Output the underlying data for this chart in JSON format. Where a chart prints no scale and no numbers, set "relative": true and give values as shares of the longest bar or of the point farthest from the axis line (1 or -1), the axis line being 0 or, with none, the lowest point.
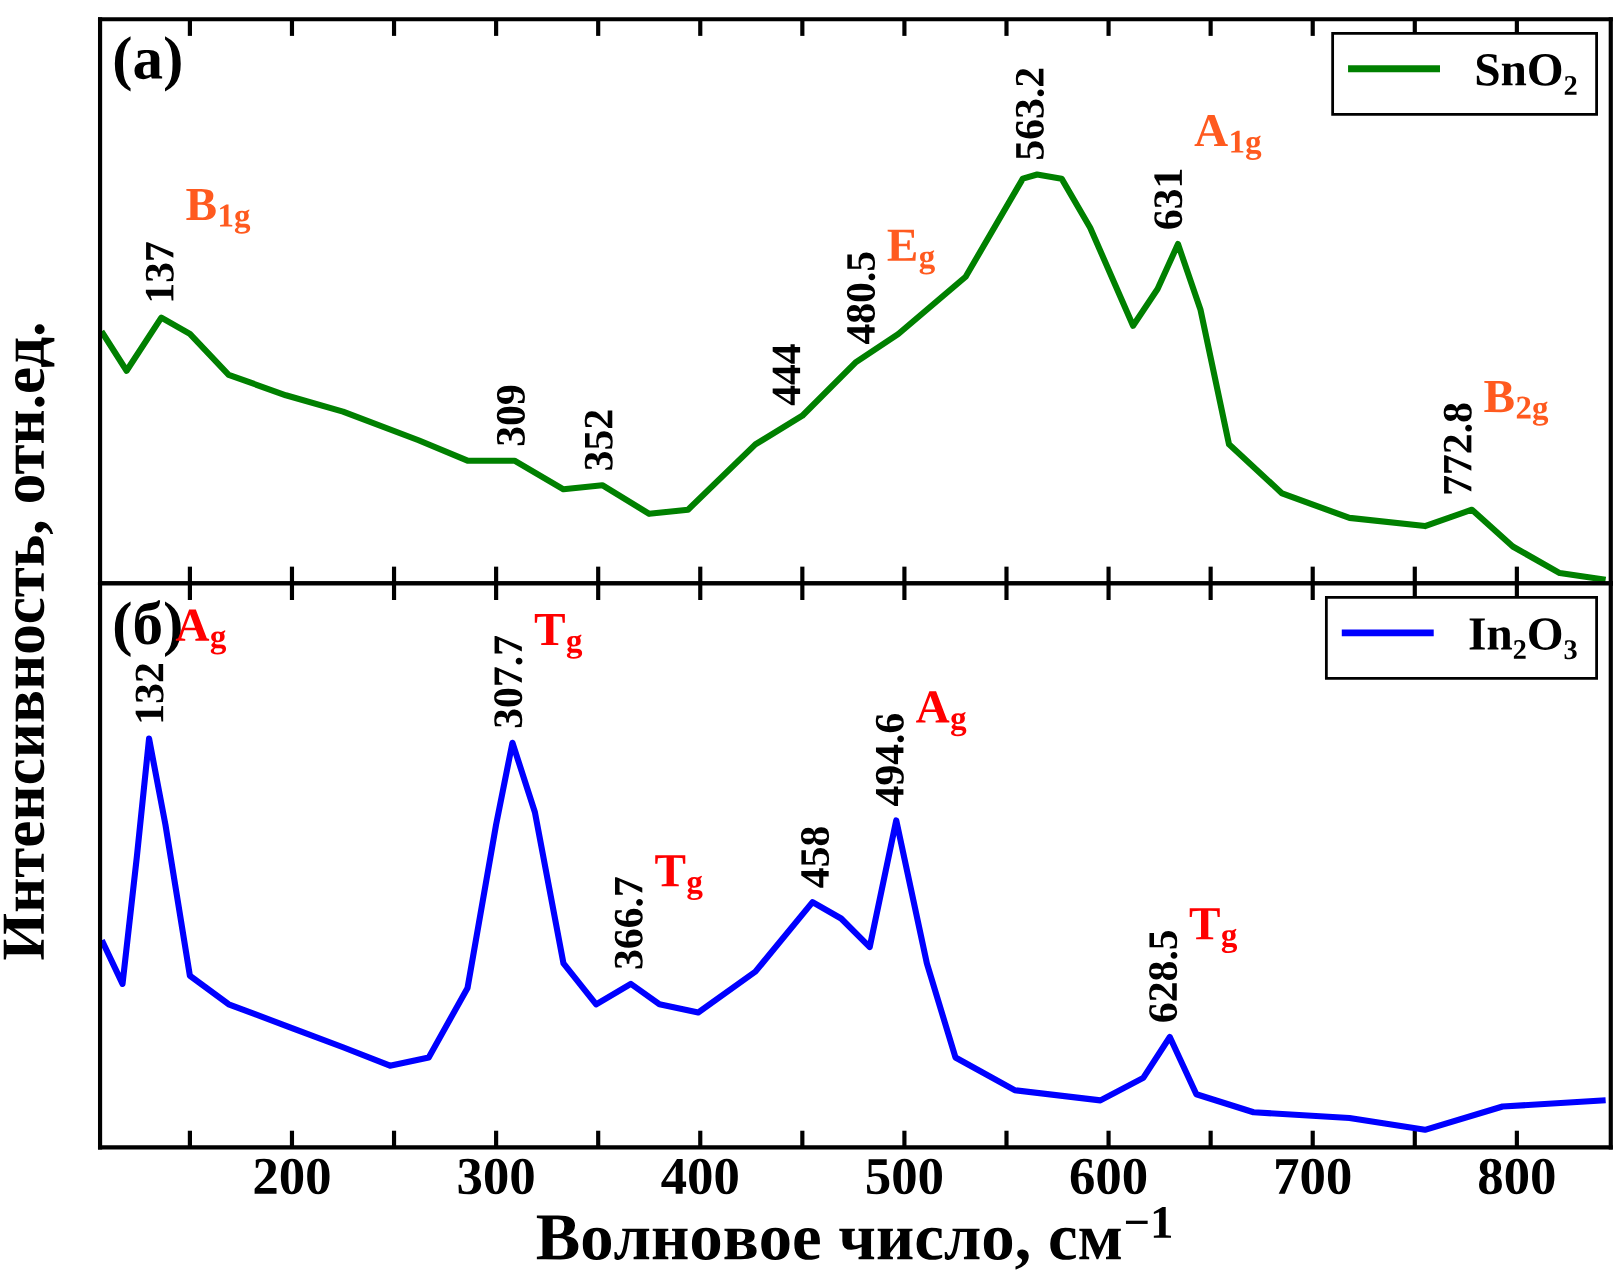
{
  "chart_data": [
    {
      "type": "line",
      "title": "(a)",
      "ylabel": "Интенсивность, отн.ед.",
      "relative": true,
      "legend": "top right",
      "grid": false,
      "tick_labels": false,
      "xlim": [
        106,
        846
      ],
      "xticks": [
        {
          "value": 150,
          "label": null
        },
        200,
        {
          "value": 250,
          "label": null
        },
        300,
        {
          "value": 350,
          "label": null
        },
        400,
        {
          "value": 450,
          "label": null
        },
        500,
        {
          "value": 550,
          "label": null
        },
        600,
        {
          "value": 650,
          "label": null
        },
        700,
        {
          "value": 750,
          "label": null
        },
        800
      ],
      "series": [
        {
          "name": "SnO₂",
          "color": "#008000",
          "x": [
            107.5,
            119,
            136,
            150,
            169,
            197,
            225,
            262,
            286,
            309,
            333,
            352,
            375,
            394,
            427,
            450,
            476,
            497,
            530,
            558,
            565,
            577,
            591,
            612,
            624,
            634,
            645,
            659,
            685,
            718,
            755,
            778,
            798,
            821,
            842
          ],
          "values": [
            0.61,
            0.52,
            0.65,
            0.61,
            0.51,
            0.46,
            0.42,
            0.35,
            0.3,
            0.3,
            0.23,
            0.24,
            0.17,
            0.18,
            0.34,
            0.41,
            0.54,
            0.61,
            0.75,
            0.99,
            1.0,
            0.99,
            0.87,
            0.63,
            0.72,
            0.83,
            0.67,
            0.34,
            0.22,
            0.16,
            0.14,
            0.18,
            0.09,
            0.025,
            0.01
          ]
        }
      ],
      "annotations": [
        {
          "text": "137",
          "x": 137,
          "y": 0.65
        },
        {
          "text": "309",
          "x": 309,
          "y": 0.3
        },
        {
          "text": "352",
          "x": 352,
          "y": 0.24
        },
        {
          "text": "444",
          "x": 444,
          "y": 0.4
        },
        {
          "text": "480.5",
          "x": 480.5,
          "y": 0.55
        },
        {
          "text": "563.2",
          "x": 563.2,
          "y": 1.0
        },
        {
          "text": "631",
          "x": 631,
          "y": 0.83
        },
        {
          "text": "772.8",
          "x": 772.8,
          "y": 0.18
        },
        {
          "text": "B$_{1g}$",
          "x": 137,
          "y": 0.65
        },
        {
          "text": "E$_{g}$",
          "x": 480.5,
          "y": 0.55
        },
        {
          "text": "A$_{1g}$",
          "x": 631,
          "y": 0.83
        },
        {
          "text": "B$_{2g}$",
          "x": 772.8,
          "y": 0.18
        }
      ]
    },
    {
      "type": "line",
      "title": "(б)",
      "xlabel": "Волновое число, см$^{−1}$",
      "relative": true,
      "legend": "top right",
      "grid": false,
      "tick_labels": "x",
      "xlim": [
        106,
        846
      ],
      "xticks": [
        {
          "value": 150,
          "label": null
        },
        200,
        {
          "value": 250,
          "label": null
        },
        300,
        {
          "value": 350,
          "label": null
        },
        400,
        {
          "value": 450,
          "label": null
        },
        500,
        {
          "value": 550,
          "label": null
        },
        600,
        {
          "value": 650,
          "label": null
        },
        700,
        {
          "value": 750,
          "label": null
        },
        800
      ],
      "series": [
        {
          "name": "In₂O₃",
          "color": "#0000ff",
          "x": [
            107.5,
            117,
            124,
            130,
            138,
            150,
            169,
            201,
            225,
            248,
            267,
            286,
            300,
            308,
            319,
            333,
            349,
            366,
            380,
            399,
            427,
            455,
            469,
            483,
            496,
            511,
            525,
            554,
            596,
            617,
            630,
            643,
            671,
            718,
            755,
            793,
            842
          ],
          "values": [
            0.5,
            0.4,
            0.71,
            1.0,
            0.79,
            0.42,
            0.35,
            0.29,
            0.245,
            0.2,
            0.22,
            0.39,
            0.79,
            0.99,
            0.82,
            0.45,
            0.35,
            0.4,
            0.35,
            0.33,
            0.43,
            0.6,
            0.56,
            0.49,
            0.8,
            0.45,
            0.22,
            0.14,
            0.115,
            0.17,
            0.27,
            0.13,
            0.086,
            0.072,
            0.043,
            0.1,
            0.115
          ]
        }
      ],
      "annotations": [
        {
          "text": "132",
          "x": 132,
          "y": 1.0
        },
        {
          "text": "307.7",
          "x": 307.7,
          "y": 0.99
        },
        {
          "text": "366.7",
          "x": 366.7,
          "y": 0.4
        },
        {
          "text": "458",
          "x": 458,
          "y": 0.6
        },
        {
          "text": "494.6",
          "x": 494.6,
          "y": 0.8
        },
        {
          "text": "628.5",
          "x": 628.5,
          "y": 0.27
        },
        {
          "text": "A$_{g}$",
          "x": 132,
          "y": 1.0
        },
        {
          "text": "T$_{g}$",
          "x": 307.7,
          "y": 0.99
        },
        {
          "text": "T$_{g}$",
          "x": 366.7,
          "y": 0.4
        },
        {
          "text": "A$_{g}$",
          "x": 494.6,
          "y": 0.8
        },
        {
          "text": "T$_{g}$",
          "x": 628.5,
          "y": 0.27
        }
      ]
    }
  ]
}
